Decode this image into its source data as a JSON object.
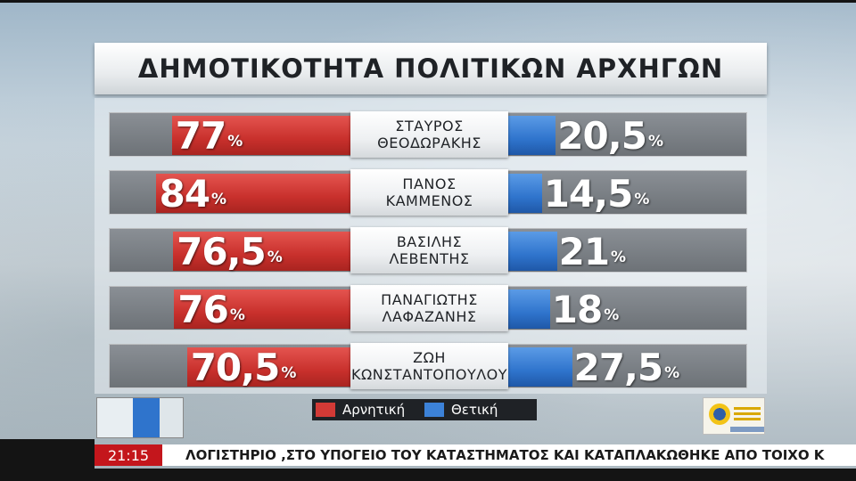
{
  "title": "ΔΗΜΟΤΙΚΟΤΗΤΑ ΠΟΛΙΤΙΚΩΝ ΑΡΧΗΓΩΝ",
  "chart_data": {
    "type": "bar",
    "title": "ΔΗΜΟΤΙΚΟΤΗΤΑ ΠΟΛΙΤΙΚΩΝ ΑΡΧΗΓΩΝ",
    "categories": [
      [
        "ΣΤΑΥΡΟΣ",
        "ΘΕΟΔΩΡΑΚΗΣ"
      ],
      [
        "ΠΑΝΟΣ",
        "ΚΑΜΜΕΝΟΣ"
      ],
      [
        "ΒΑΣΙΛΗΣ",
        "ΛΕΒΕΝΤΗΣ"
      ],
      [
        "ΠΑΝΑΓΙΩΤΗΣ",
        "ΛΑΦΑΖΑΝΗΣ"
      ],
      [
        "ΖΩΗ",
        "ΚΩΝΣΤΑΝΤΟΠΟΥΛΟΥ"
      ]
    ],
    "series": [
      {
        "name": "Αρνητική",
        "values": [
          77,
          84,
          76.5,
          76,
          70.5
        ],
        "labels": [
          "77",
          "84",
          "76,5",
          "76",
          "70,5"
        ],
        "color": "#d33a36"
      },
      {
        "name": "Θετική",
        "values": [
          20.5,
          14.5,
          21,
          18,
          27.5
        ],
        "labels": [
          "20,5",
          "14,5",
          "21",
          "18",
          "27,5"
        ],
        "color": "#3c82d8"
      }
    ],
    "unit": "%",
    "legend_position": "bottom-center"
  },
  "legend": {
    "negative_label": "Αρνητική",
    "positive_label": "Θετική",
    "negative_color": "#d33a36",
    "positive_color": "#3c82d8"
  },
  "ticker": {
    "time": "21:15",
    "text": "ΛΟΓΙΣΤΗΡΙΟ ,ΣΤΟ ΥΠΟΓΕΙΟ ΤΟΥ ΚΑΤΑΣΤΗΜΑΤΟΣ ΚΑΙ ΚΑΤΑΠΛΑΚΩΘΗΚΕ ΑΠΟ ΤΟΙΧΟ Κ"
  }
}
